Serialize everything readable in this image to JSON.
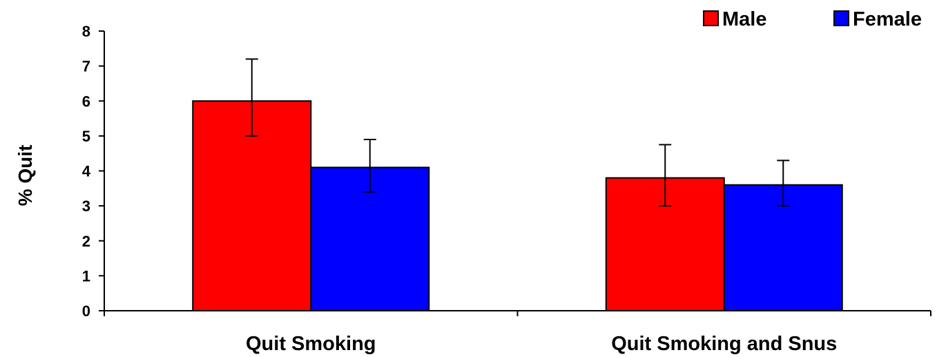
{
  "chart_data": {
    "type": "bar",
    "title": "",
    "xlabel": "",
    "ylabel": "% Quit",
    "categories": [
      "Quit Smoking",
      "Quit Smoking and Snus"
    ],
    "series": [
      {
        "name": "Male",
        "color": "#ff0000",
        "values": [
          6.0,
          3.8
        ],
        "error_low": [
          5.0,
          3.0
        ],
        "error_high": [
          7.2,
          4.75
        ]
      },
      {
        "name": "Female",
        "color": "#0000ff",
        "values": [
          4.1,
          3.6
        ],
        "error_low": [
          3.4,
          3.0
        ],
        "error_high": [
          4.9,
          4.3
        ]
      }
    ],
    "ylim": [
      0,
      8
    ],
    "yticks": [
      "0",
      "1",
      "2",
      "3",
      "4",
      "5",
      "6",
      "7",
      "8"
    ],
    "grid": false,
    "legend_position": "top-right"
  }
}
